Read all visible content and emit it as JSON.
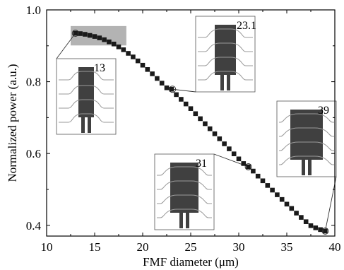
{
  "chart_data": {
    "type": "scatter",
    "title": "",
    "xlabel": "FMF diameter (μm)",
    "ylabel": "Normalized power (a.u.)",
    "xlim": [
      10,
      40
    ],
    "ylim": [
      0.37,
      1.0
    ],
    "x_ticks": [
      10,
      15,
      20,
      25,
      30,
      35,
      40
    ],
    "y_ticks": [
      0.4,
      0.6,
      0.8,
      1.0
    ],
    "grid": false,
    "legend": "none",
    "marker": "square",
    "series": [
      {
        "color": "#1a1a1a",
        "x": [
          13.0,
          13.5,
          14.0,
          14.5,
          15.0,
          15.5,
          16.0,
          16.5,
          17.0,
          17.5,
          18.0,
          18.5,
          19.0,
          19.5,
          20.0,
          20.5,
          21.0,
          21.5,
          22.0,
          22.5,
          23.0,
          23.5,
          24.0,
          24.5,
          25.0,
          25.5,
          26.0,
          26.5,
          27.0,
          27.5,
          28.0,
          28.5,
          29.0,
          29.5,
          30.0,
          30.5,
          31.0,
          31.5,
          32.0,
          32.5,
          33.0,
          33.5,
          34.0,
          34.5,
          35.0,
          35.5,
          36.0,
          36.5,
          37.0,
          37.5,
          38.0,
          38.5,
          39.0
        ],
        "y": [
          0.935,
          0.934,
          0.932,
          0.929,
          0.926,
          0.922,
          0.917,
          0.911,
          0.905,
          0.897,
          0.889,
          0.879,
          0.869,
          0.858,
          0.846,
          0.834,
          0.822,
          0.809,
          0.796,
          0.783,
          0.779,
          0.764,
          0.751,
          0.738,
          0.725,
          0.711,
          0.697,
          0.683,
          0.669,
          0.655,
          0.641,
          0.627,
          0.613,
          0.599,
          0.585,
          0.572,
          0.563,
          0.551,
          0.537,
          0.524,
          0.511,
          0.498,
          0.485,
          0.472,
          0.459,
          0.447,
          0.434,
          0.422,
          0.41,
          0.399,
          0.393,
          0.388,
          0.384
        ]
      }
    ],
    "highlight_region": {
      "x": [
        12.5,
        18.3
      ],
      "y": [
        0.901,
        0.955
      ],
      "color": "#b3b3b3"
    },
    "insets": [
      {
        "label": "13",
        "point": {
          "x": 13.0,
          "y": 0.935
        }
      },
      {
        "label": "23.1",
        "point": {
          "x": 23.1,
          "y": 0.779
        }
      },
      {
        "label": "31",
        "point": {
          "x": 31.0,
          "y": 0.563
        }
      },
      {
        "label": "39",
        "point": {
          "x": 39.0,
          "y": 0.384
        }
      }
    ]
  }
}
